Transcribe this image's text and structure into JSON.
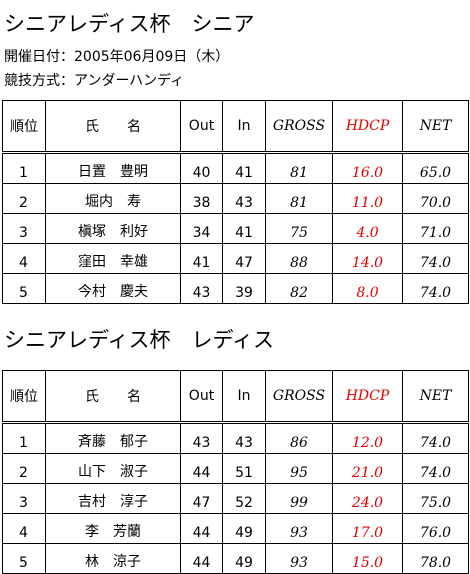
{
  "sections": [
    {
      "title": "シニアレディス杯　シニア",
      "info": [
        "開催日付：2005年06月09日（木）",
        "競技方式：アンダーハンディ"
      ],
      "table": {
        "header": [
          "順位",
          "氏　　名",
          "Out",
          "In",
          "GROSS",
          "HDCP",
          "NET"
        ],
        "rows": [
          [
            "1",
            "日置　豊明",
            "40",
            "41",
            "81",
            "16.0",
            "65.0"
          ],
          [
            "2",
            "堀内　寿",
            "38",
            "43",
            "81",
            "11.0",
            "70.0"
          ],
          [
            "3",
            "槇塚　利好",
            "34",
            "41",
            "75",
            "4.0",
            "71.0"
          ],
          [
            "4",
            "窪田　幸雄",
            "41",
            "47",
            "88",
            "14.0",
            "74.0"
          ],
          [
            "5",
            "今村　慶夫",
            "43",
            "39",
            "82",
            "8.0",
            "74.0"
          ]
        ]
      }
    },
    {
      "title": "シニアレディス杯　レディス",
      "table": {
        "header": [
          "順位",
          "氏　　名",
          "Out",
          "In",
          "GROSS",
          "HDCP",
          "NET"
        ],
        "rows": [
          [
            "1",
            "斉藤　郁子",
            "43",
            "43",
            "86",
            "12.0",
            "74.0"
          ],
          [
            "2",
            "山下　淑子",
            "44",
            "51",
            "95",
            "21.0",
            "74.0"
          ],
          [
            "3",
            "吉村　淳子",
            "47",
            "52",
            "99",
            "24.0",
            "75.0"
          ],
          [
            "4",
            "李　芳蘭",
            "44",
            "49",
            "93",
            "17.0",
            "76.0"
          ],
          [
            "5",
            "林　涼子",
            "44",
            "49",
            "93",
            "15.0",
            "78.0"
          ]
        ]
      }
    }
  ]
}
